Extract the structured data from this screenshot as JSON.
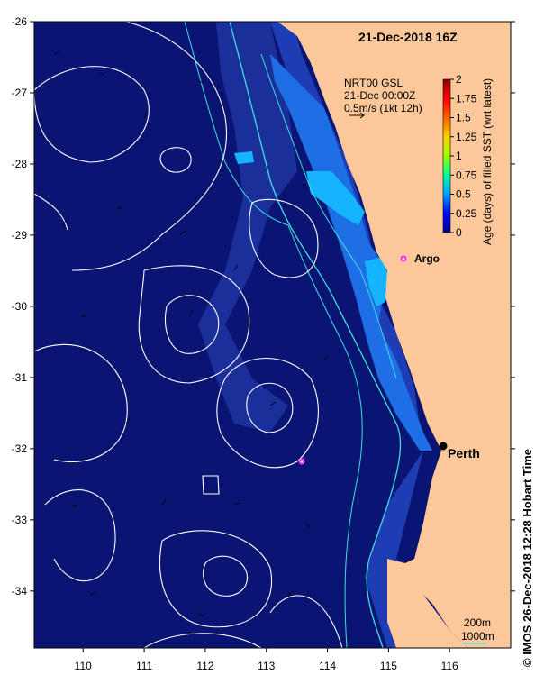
{
  "map": {
    "title": "21-Dec-2018 16Z",
    "lon_ticks": [
      "110",
      "111",
      "112",
      "113",
      "114",
      "115",
      "116"
    ],
    "lat_ticks": [
      "-26",
      "-27",
      "-28",
      "-29",
      "-30",
      "-31",
      "-32",
      "-33",
      "-34"
    ],
    "lon_range": [
      109.2,
      117.0
    ],
    "lat_range": [
      -34.8,
      -26.0
    ],
    "legend": {
      "product": "NRT00 GSL",
      "time": "21-Dec 00:00Z",
      "vector_scale": "0.5m/s (1kt 12h)"
    },
    "colorbar": {
      "label": "Age (days) of filled SST (wrt latest)",
      "ticks": [
        "0",
        "0.25",
        "0.5",
        "0.75",
        "1",
        "1.25",
        "1.5",
        "1.75",
        "2"
      ],
      "colors": [
        "#00008f",
        "#0000ff",
        "#00a0ff",
        "#00ffa0",
        "#a0ff00",
        "#ffd000",
        "#ff6000",
        "#ff0000",
        "#8f0000"
      ]
    },
    "places": {
      "argo": "Argo",
      "perth": "Perth"
    },
    "depth_legend": {
      "shallow": "200m",
      "deep": "1000m"
    },
    "credit": "© IMOS 26-Dec-2018 12:28 Hobart Time",
    "colors": {
      "land": "#fcc89a",
      "ocean_deep": "#0a1472",
      "ocean_mid": "#1e3cb4",
      "ocean_shallow": "#1e6ee6",
      "ocean_coastal": "#14b4ff",
      "contour": "#ffffff",
      "isobath": "#40e0e0",
      "argo_marker": "#ff30ff"
    }
  }
}
